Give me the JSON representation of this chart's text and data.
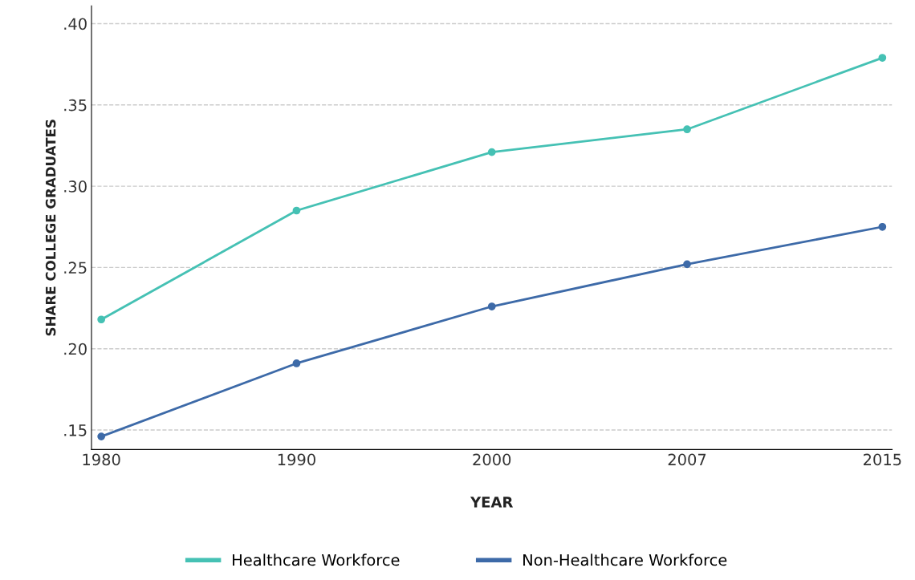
{
  "chart_data": {
    "type": "line",
    "xlabel": "YEAR",
    "ylabel": "SHARE COLLEGE GRADUATES",
    "categories": [
      "1980",
      "1990",
      "2000",
      "2007",
      "2015"
    ],
    "series": [
      {
        "name": "Healthcare Workforce",
        "color": "#45c1b4",
        "values": [
          0.218,
          0.285,
          0.321,
          0.335,
          0.379
        ]
      },
      {
        "name": "Non-Healthcare Workforce",
        "color": "#3d6aa8",
        "values": [
          0.146,
          0.191,
          0.226,
          0.252,
          0.275
        ]
      }
    ],
    "ylim": [
      0.138,
      0.411
    ],
    "yticks": [
      {
        "value": 0.15,
        "label": ".15"
      },
      {
        "value": 0.2,
        "label": ".20"
      },
      {
        "value": 0.25,
        "label": ".25"
      },
      {
        "value": 0.3,
        "label": ".30"
      },
      {
        "value": 0.35,
        "label": ".35"
      },
      {
        "value": 0.4,
        "label": ".40"
      }
    ],
    "grid": "y",
    "legend": "bottom",
    "marker": "circle",
    "line_style": "solid"
  }
}
